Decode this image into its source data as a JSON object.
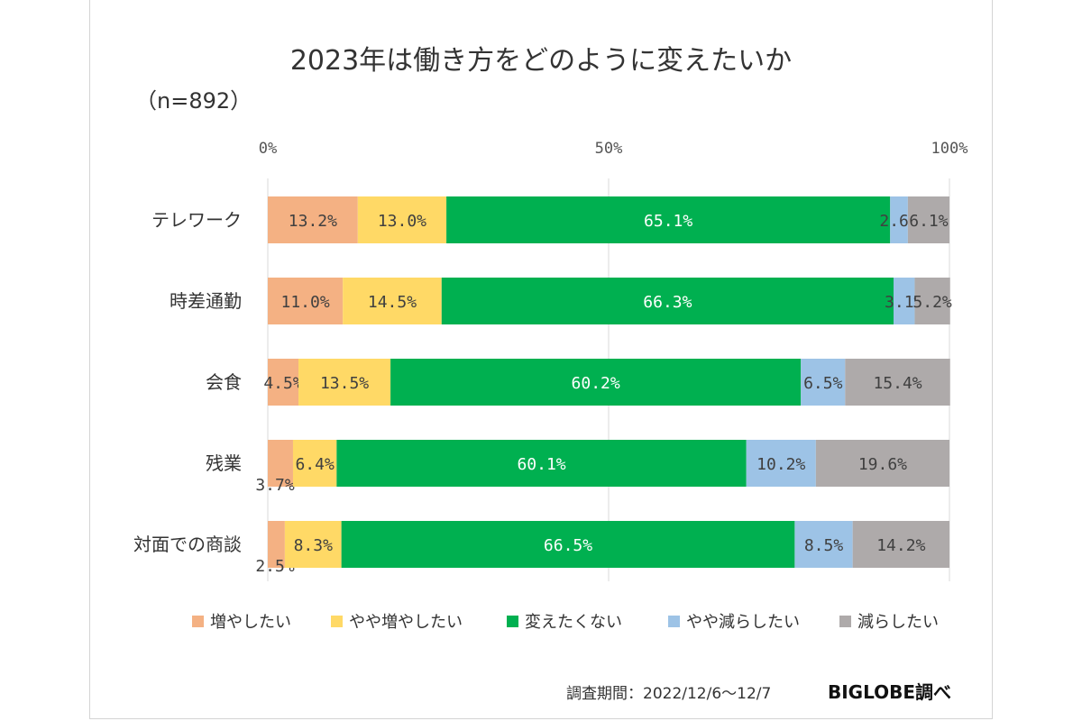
{
  "title": "2023年は働き方をどのように変えたいか",
  "subtitle": "（n=892）",
  "footer": {
    "note": "調査期間：2022/12/6～12/7",
    "brand": "BIGLOBE調べ"
  },
  "chart_data": {
    "type": "bar",
    "orientation": "horizontal",
    "stacked": true,
    "percent": true,
    "categories": [
      "テレワーク",
      "時差通勤",
      "会食",
      "残業",
      "対面での商談"
    ],
    "series": [
      {
        "name": "増やしたい",
        "color": "#f4b183",
        "values": [
          13.2,
          11.0,
          4.5,
          3.7,
          2.5
        ]
      },
      {
        "name": "やや増やしたい",
        "color": "#ffd966",
        "values": [
          13.0,
          14.5,
          13.5,
          6.4,
          8.3
        ]
      },
      {
        "name": "変えたくない",
        "color": "#00b050",
        "values": [
          65.1,
          66.3,
          60.2,
          60.1,
          66.5
        ]
      },
      {
        "name": "やや減らしたい",
        "color": "#9dc3e6",
        "values": [
          2.6,
          3.1,
          6.5,
          10.2,
          8.5
        ]
      },
      {
        "name": "減らしたい",
        "color": "#aeaaaa",
        "values": [
          6.1,
          5.2,
          15.4,
          19.6,
          14.2
        ]
      }
    ],
    "data_labels": [
      [
        "13.2%",
        "13.0%",
        "65.1%",
        "2.6%",
        "6.1%"
      ],
      [
        "11.0%",
        "14.5%",
        "66.3%",
        "3.1%",
        "5.2%"
      ],
      [
        "4.5%",
        "13.5%",
        "60.2%",
        "6.5%",
        "15.4%"
      ],
      [
        "3.7%",
        "6.4%",
        "60.1%",
        "10.2%",
        "19.6%"
      ],
      [
        "2.5%",
        "8.3%",
        "66.5%",
        "8.5%",
        "14.2%"
      ]
    ],
    "xticks": [
      "0%",
      "50%",
      "100%"
    ],
    "xlim": [
      0,
      100
    ],
    "grid": true,
    "legend": "bottom"
  }
}
